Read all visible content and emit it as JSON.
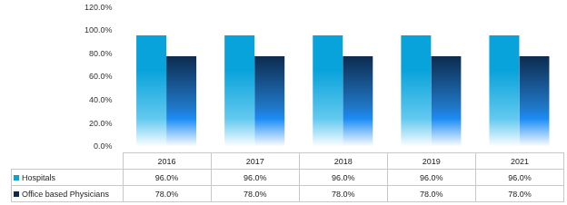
{
  "chart_data": {
    "type": "bar",
    "categories": [
      "2016",
      "2017",
      "2018",
      "2019",
      "2021"
    ],
    "series": [
      {
        "name": "Hospitals",
        "color": "#08a3db",
        "values": [
          96,
          96,
          96,
          96,
          96
        ],
        "value_labels": [
          "96.0%",
          "96.0%",
          "96.0%",
          "96.0%",
          "96.0%"
        ]
      },
      {
        "name": "Office based Physicians",
        "color": "#0d2b4e",
        "values": [
          78,
          78,
          78,
          78,
          78
        ],
        "value_labels": [
          "78.0%",
          "78.0%",
          "78.0%",
          "78.0%",
          "78.0%"
        ]
      }
    ],
    "ylim": [
      0,
      120
    ],
    "yticks": [
      {
        "value": 0,
        "label": "0.0%"
      },
      {
        "value": 20,
        "label": "20.0%"
      },
      {
        "value": 40,
        "label": "40.0%"
      },
      {
        "value": 60,
        "label": "60.0%"
      },
      {
        "value": 80,
        "label": "80.0%"
      },
      {
        "value": 100,
        "label": "100.0%"
      },
      {
        "value": 120,
        "label": "120.0%"
      }
    ],
    "grid": false,
    "tick_labels": "y"
  }
}
